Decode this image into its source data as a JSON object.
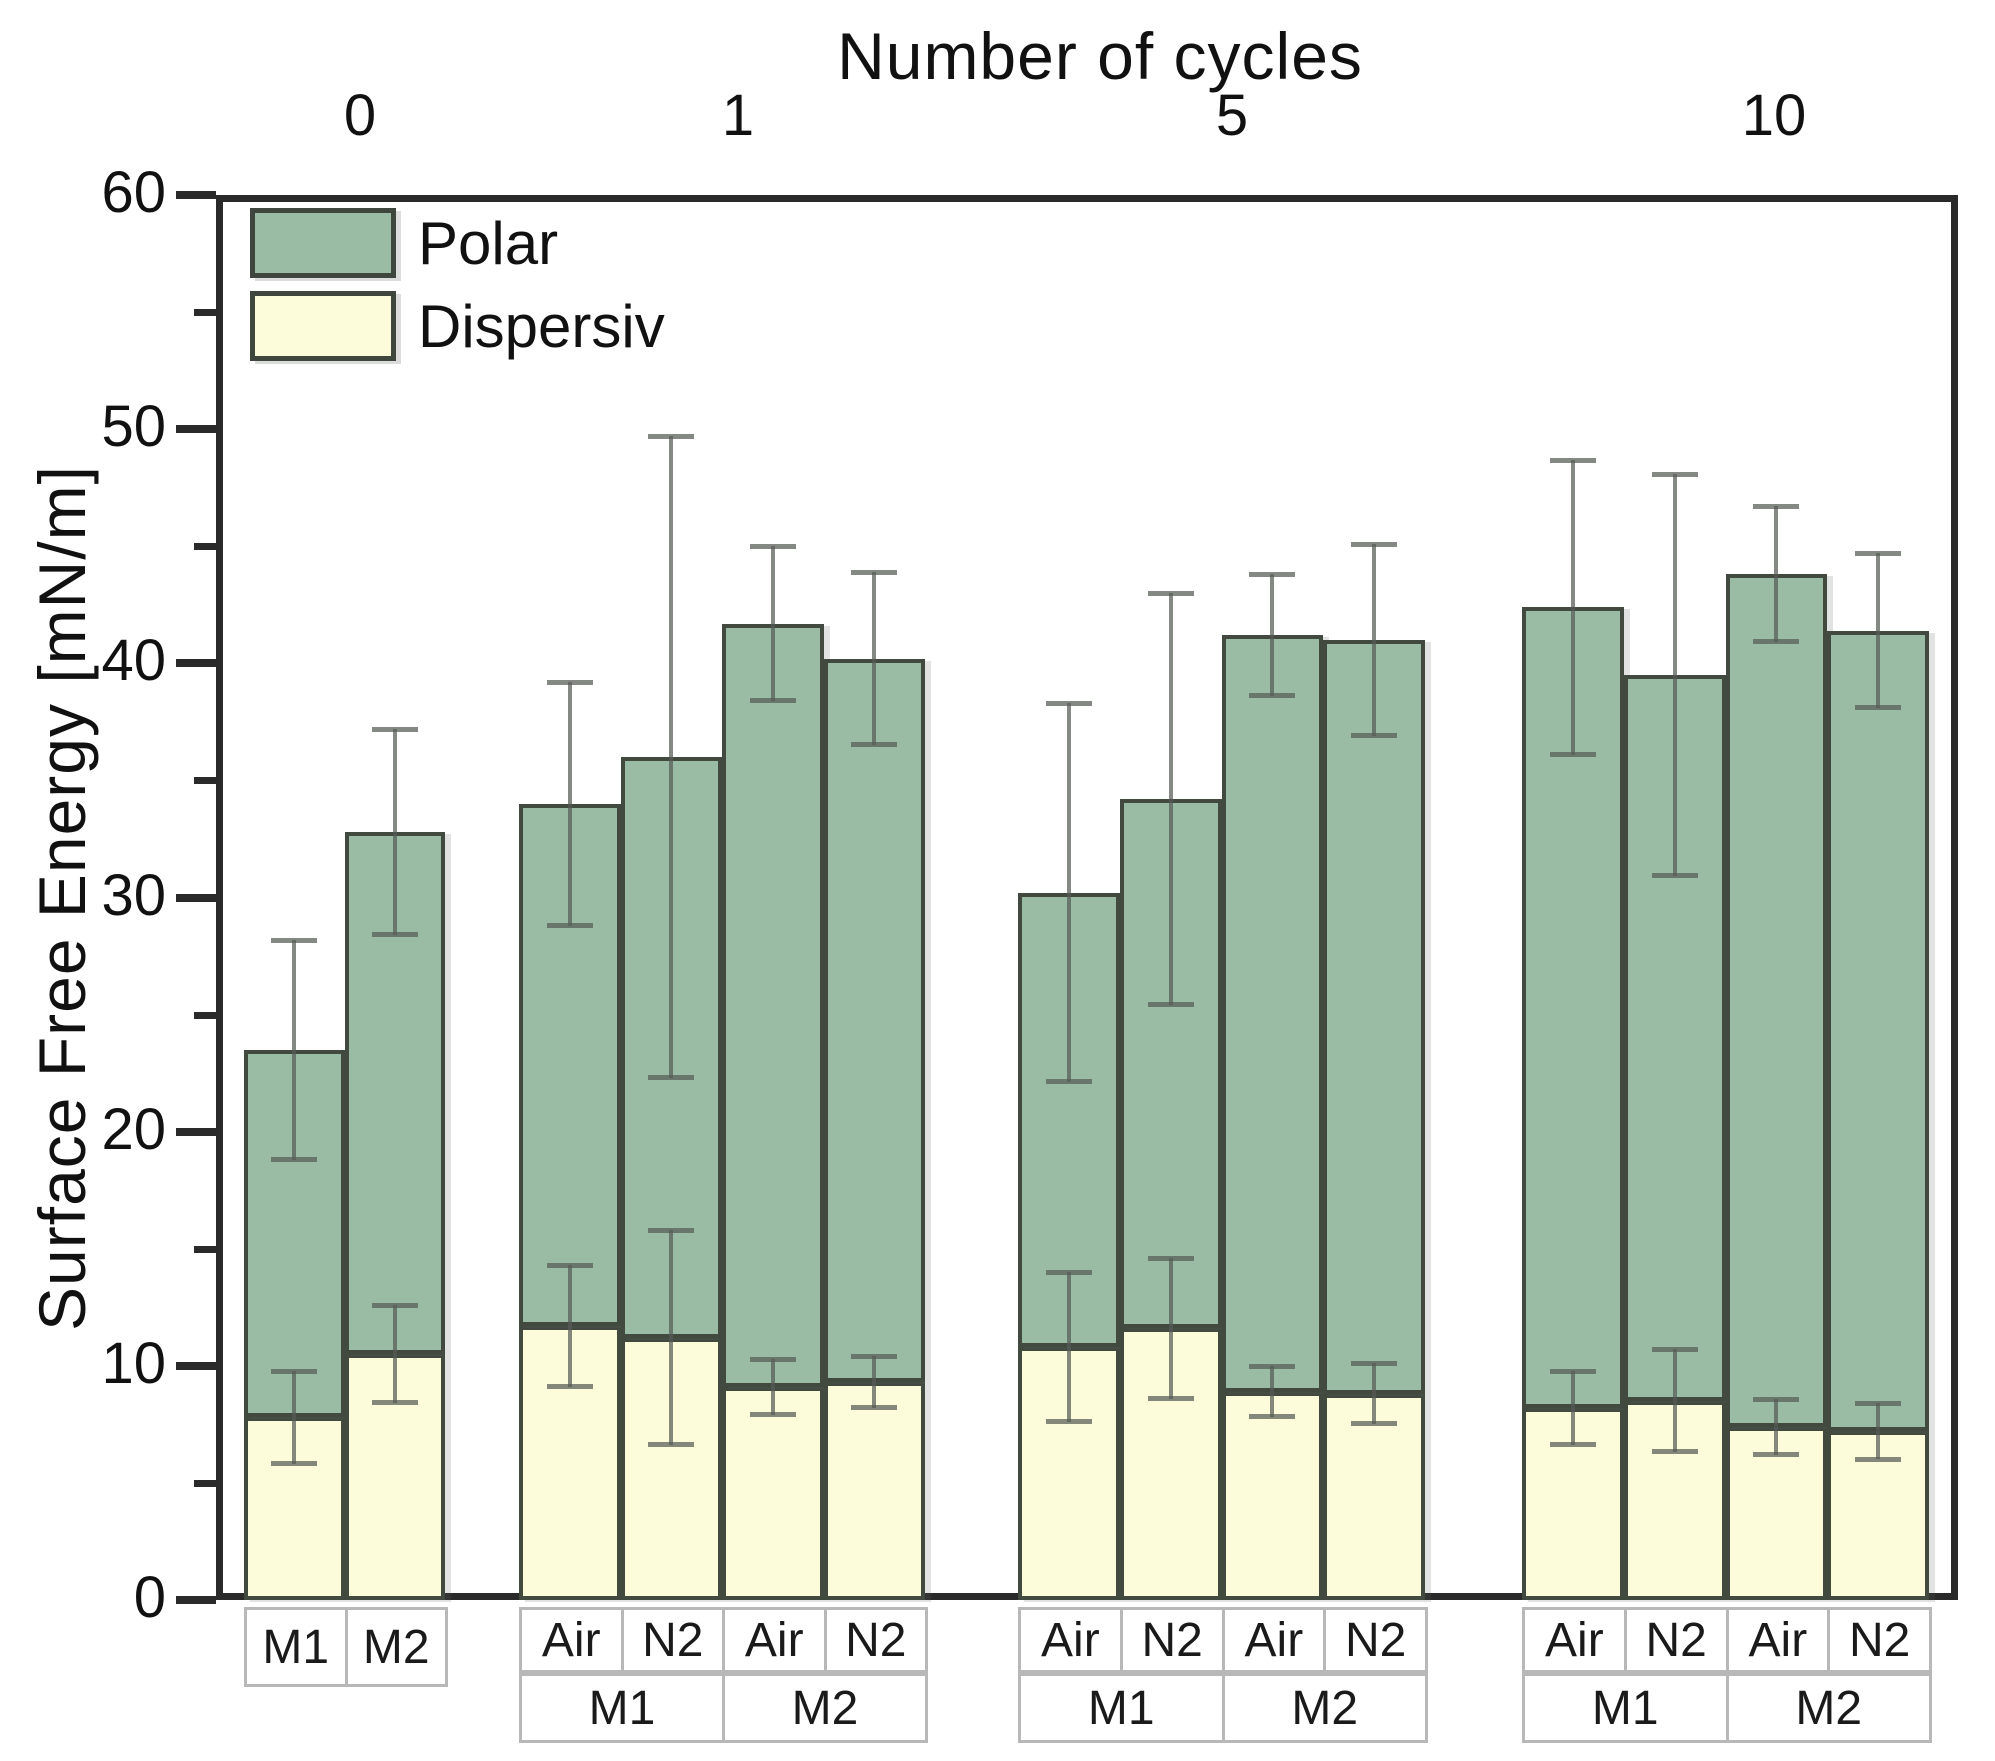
{
  "chart_data": {
    "type": "bar",
    "stacked": true,
    "top_axis_title": "Number of cycles",
    "ylabel": "Surface Free Energy [mN/m]",
    "ylim": [
      0,
      60
    ],
    "y_major_ticks": [
      0,
      10,
      20,
      30,
      40,
      50,
      60
    ],
    "y_minor_ticks": [
      5,
      15,
      25,
      35,
      45,
      55
    ],
    "grid": false,
    "legend": {
      "position": "top-left-inside",
      "entries": [
        {
          "name": "Polar",
          "color": "#9bbca4"
        },
        {
          "name": "Dispersiv",
          "color": "#fcfcdb"
        }
      ]
    },
    "units": "mN/m",
    "groups": [
      {
        "cycle": "0",
        "bars": [
          {
            "label": "M1",
            "dispersiv": 7.8,
            "dispersiv_err": 2.0,
            "polar": 15.7,
            "total": 23.5,
            "total_err": 4.7
          },
          {
            "label": "M2",
            "dispersiv": 10.5,
            "dispersiv_err": 2.1,
            "polar": 22.3,
            "total": 32.8,
            "total_err": 4.4
          }
        ],
        "bottom_row": []
      },
      {
        "cycle": "1",
        "bars": [
          {
            "label": "Air",
            "dispersiv": 11.7,
            "dispersiv_err": 2.6,
            "polar": 22.3,
            "total": 34.0,
            "total_err": 5.2
          },
          {
            "label": "N2",
            "dispersiv": 11.2,
            "dispersiv_err": 4.6,
            "polar": 24.8,
            "total": 36.0,
            "total_err": 13.7
          },
          {
            "label": "Air",
            "dispersiv": 9.1,
            "dispersiv_err": 1.2,
            "polar": 32.6,
            "total": 41.7,
            "total_err": 3.3
          },
          {
            "label": "N2",
            "dispersiv": 9.3,
            "dispersiv_err": 1.1,
            "polar": 30.9,
            "total": 40.2,
            "total_err": 3.7
          }
        ],
        "bottom_row": [
          {
            "label": "M1",
            "span": 2
          },
          {
            "label": "M2",
            "span": 2
          }
        ]
      },
      {
        "cycle": "5",
        "bars": [
          {
            "label": "Air",
            "dispersiv": 10.8,
            "dispersiv_err": 3.2,
            "polar": 19.4,
            "total": 30.2,
            "total_err": 8.1
          },
          {
            "label": "N2",
            "dispersiv": 11.6,
            "dispersiv_err": 3.0,
            "polar": 22.6,
            "total": 34.2,
            "total_err": 8.8
          },
          {
            "label": "Air",
            "dispersiv": 8.9,
            "dispersiv_err": 1.1,
            "polar": 32.3,
            "total": 41.2,
            "total_err": 2.6
          },
          {
            "label": "N2",
            "dispersiv": 8.8,
            "dispersiv_err": 1.3,
            "polar": 32.2,
            "total": 41.0,
            "total_err": 4.1
          }
        ],
        "bottom_row": [
          {
            "label": "M1",
            "span": 2
          },
          {
            "label": "M2",
            "span": 2
          }
        ]
      },
      {
        "cycle": "10",
        "bars": [
          {
            "label": "Air",
            "dispersiv": 8.2,
            "dispersiv_err": 1.6,
            "polar": 34.2,
            "total": 42.4,
            "total_err": 6.3
          },
          {
            "label": "N2",
            "dispersiv": 8.5,
            "dispersiv_err": 2.2,
            "polar": 31.0,
            "total": 39.5,
            "total_err": 8.6
          },
          {
            "label": "Air",
            "dispersiv": 7.4,
            "dispersiv_err": 1.2,
            "polar": 36.4,
            "total": 43.8,
            "total_err": 2.9
          },
          {
            "label": "N2",
            "dispersiv": 7.2,
            "dispersiv_err": 1.2,
            "polar": 34.2,
            "total": 41.4,
            "total_err": 3.3
          }
        ],
        "bottom_row": [
          {
            "label": "M1",
            "span": 2
          },
          {
            "label": "M2",
            "span": 2
          }
        ]
      }
    ],
    "colors": {
      "polar_fill": "#9bbca4",
      "dispersiv_fill": "#fcfcdb",
      "bar_border": "#424a40",
      "error_bar": "#565c54",
      "axis": "#2a2a2a",
      "label_box_border": "#b8b8b8",
      "text": "#111111"
    }
  }
}
